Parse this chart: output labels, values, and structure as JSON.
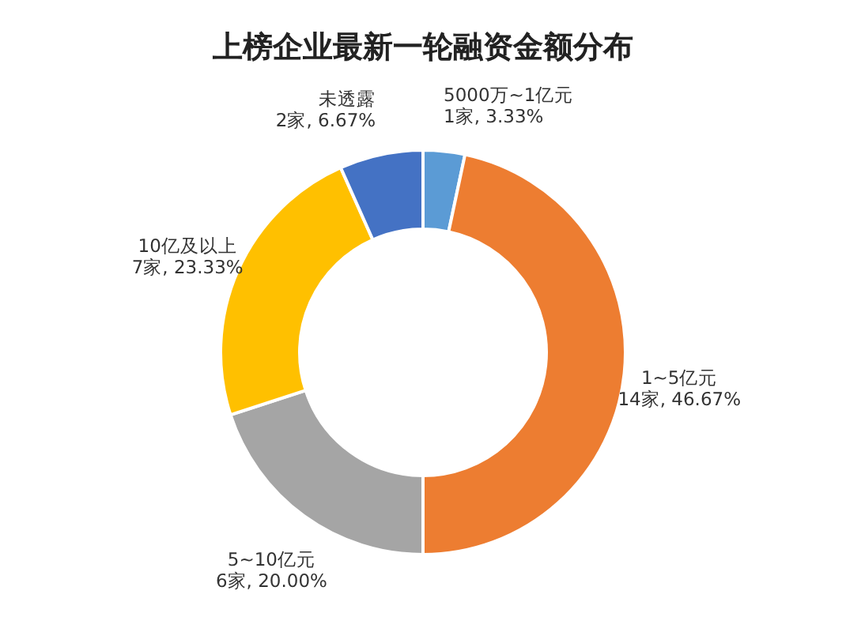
{
  "chart_data": {
    "type": "donut",
    "title": "上榜企业最新一轮融资金额分布",
    "categories": [
      "5000万~1亿元",
      "1~5亿元",
      "5~10亿元",
      "10亿及以上",
      "未透露"
    ],
    "values": [
      3.33,
      46.67,
      20.0,
      23.33,
      6.67
    ],
    "value_labels": [
      "1家, 3.33%",
      "14家, 46.67%",
      "6家, 20.00%",
      "7家, 23.33%",
      "2家, 6.67%"
    ],
    "colors": [
      "#5b9bd5",
      "#ed7d31",
      "#a5a5a5",
      "#ffc000",
      "#4472c4"
    ]
  }
}
